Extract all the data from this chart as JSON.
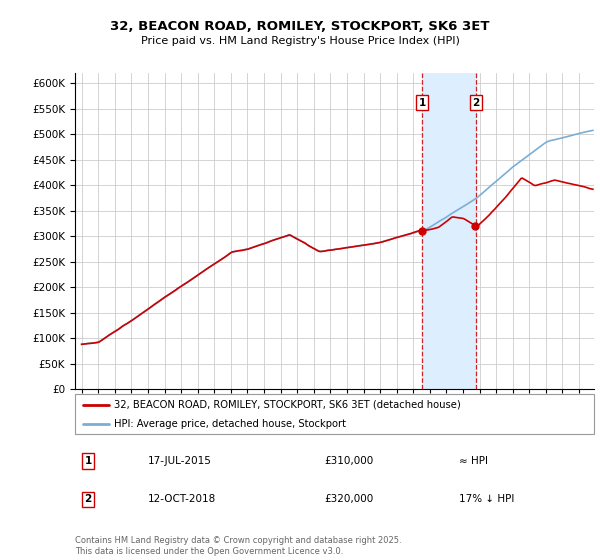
{
  "title1": "32, BEACON ROAD, ROMILEY, STOCKPORT, SK6 3ET",
  "title2": "Price paid vs. HM Land Registry's House Price Index (HPI)",
  "ylim": [
    0,
    620000
  ],
  "yticks": [
    0,
    50000,
    100000,
    150000,
    200000,
    250000,
    300000,
    350000,
    400000,
    450000,
    500000,
    550000,
    600000
  ],
  "legend_line1": "32, BEACON ROAD, ROMILEY, STOCKPORT, SK6 3ET (detached house)",
  "legend_line2": "HPI: Average price, detached house, Stockport",
  "annotation1_label": "1",
  "annotation1_date": "17-JUL-2015",
  "annotation1_price": "£310,000",
  "annotation1_hpi": "≈ HPI",
  "annotation2_label": "2",
  "annotation2_date": "12-OCT-2018",
  "annotation2_price": "£320,000",
  "annotation2_hpi": "17% ↓ HPI",
  "footer": "Contains HM Land Registry data © Crown copyright and database right 2025.\nThis data is licensed under the Open Government Licence v3.0.",
  "line1_color": "#cc0000",
  "line2_color": "#7aaed6",
  "shade_color": "#ddeeff",
  "vline_color": "#cc0000",
  "marker1_x": 2015.54,
  "marker1_y": 310000,
  "marker2_x": 2018.79,
  "marker2_y": 320000,
  "vline1_x": 2015.54,
  "vline2_x": 2018.79,
  "shade_x1": 2015.54,
  "shade_x2": 2018.79,
  "xmin": 1994.6,
  "xmax": 2025.9
}
